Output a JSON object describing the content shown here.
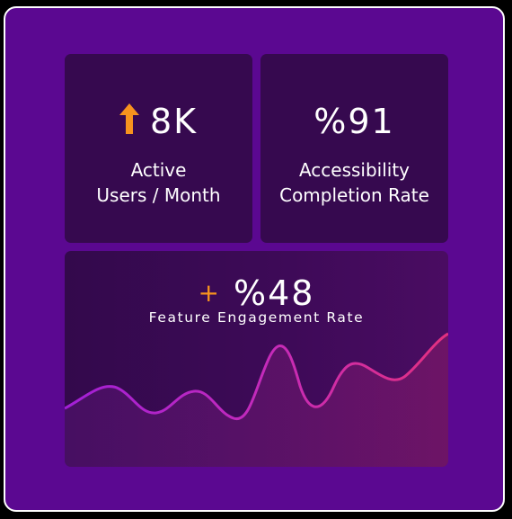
{
  "metrics": {
    "active_users": {
      "value": "8K",
      "label_line1": "Active",
      "label_line2": "Users / Month",
      "trend_icon": "arrow-up-icon"
    },
    "accessibility": {
      "value": "%91",
      "label_line1": "Accessibility",
      "label_line2": "Completion Rate"
    },
    "engagement": {
      "prefix": "+",
      "value": "%48",
      "label": "Feature Engagement Rate"
    }
  },
  "colors": {
    "frame_bg": "#5b0891",
    "card_bg": "#36094f",
    "accent_orange": "#f7931e",
    "wave_start": "#a21fd6",
    "wave_end": "#e3307f",
    "border": "#ffffff"
  }
}
